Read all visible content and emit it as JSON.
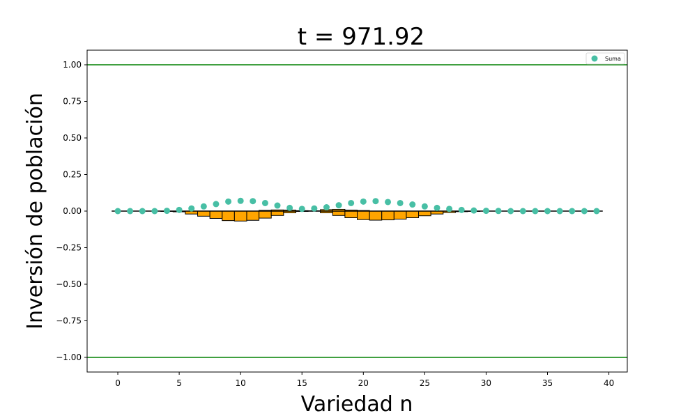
{
  "chart_data": {
    "type": "scatter",
    "title": "t = 971.92",
    "xlabel": "Variedad n",
    "ylabel": "Inversión de población",
    "xlim": [
      -2.5,
      41.5
    ],
    "ylim": [
      -1.1,
      1.1
    ],
    "xticks": [
      0,
      5,
      10,
      15,
      20,
      25,
      30,
      35,
      40
    ],
    "yticks": [
      -1.0,
      -0.75,
      -0.5,
      -0.25,
      0.0,
      0.25,
      0.5,
      0.75,
      1.0
    ],
    "xtick_labels": [
      "0",
      "5",
      "10",
      "15",
      "20",
      "25",
      "30",
      "35",
      "40"
    ],
    "ytick_labels": [
      "−1.00",
      "−0.75",
      "−0.50",
      "−0.25",
      "0.00",
      "0.25",
      "0.50",
      "0.75",
      "1.00"
    ],
    "grid": false,
    "legend_position": "top-right",
    "reference_lines": {
      "horizontal_green": [
        1.0,
        -1.0
      ],
      "baseline": 0.0,
      "baseline_x_range": [
        -0.5,
        39.5
      ],
      "green_color": "#008000",
      "baseline_color": "#000000"
    },
    "series": [
      {
        "name": "Suma",
        "kind": "scatter",
        "color": "#48bfa5",
        "x": [
          0,
          1,
          2,
          3,
          4,
          5,
          6,
          7,
          8,
          9,
          10,
          11,
          12,
          13,
          14,
          15,
          16,
          17,
          18,
          19,
          20,
          21,
          22,
          23,
          24,
          25,
          26,
          27,
          28,
          29,
          30,
          31,
          32,
          33,
          34,
          35,
          36,
          37,
          38,
          39
        ],
        "values": [
          0.0,
          0.0,
          0.0,
          0.0,
          0.002,
          0.008,
          0.018,
          0.032,
          0.048,
          0.065,
          0.07,
          0.068,
          0.055,
          0.038,
          0.022,
          0.015,
          0.018,
          0.026,
          0.04,
          0.055,
          0.065,
          0.068,
          0.062,
          0.055,
          0.045,
          0.032,
          0.022,
          0.015,
          0.008,
          0.004,
          0.002,
          0.001,
          0.0,
          0.0,
          0.0,
          0.0,
          0.0,
          0.0,
          0.0,
          0.0
        ]
      },
      {
        "kind": "bar",
        "color": "#ffa500",
        "edge_color": "#000000",
        "x": [
          0,
          1,
          2,
          3,
          4,
          5,
          6,
          7,
          8,
          9,
          10,
          11,
          12,
          13,
          14,
          15,
          16,
          17,
          18,
          19,
          20,
          21,
          22,
          23,
          24,
          25,
          26,
          27,
          28,
          29,
          30,
          31,
          32,
          33,
          34,
          35,
          36,
          37,
          38,
          39
        ],
        "values": [
          0.0,
          0.0,
          0.0,
          0.0,
          -0.001,
          -0.005,
          -0.02,
          -0.035,
          -0.05,
          -0.065,
          -0.068,
          -0.063,
          -0.048,
          -0.03,
          -0.012,
          -0.002,
          0.0,
          -0.012,
          -0.03,
          -0.045,
          -0.058,
          -0.062,
          -0.06,
          -0.055,
          -0.045,
          -0.032,
          -0.02,
          -0.01,
          -0.004,
          -0.001,
          0.0,
          0.0,
          0.0,
          0.0,
          0.0,
          0.0,
          0.0,
          0.0,
          0.0,
          0.0
        ]
      },
      {
        "kind": "bar",
        "color": "#ffa500",
        "edge_color": "#000000",
        "x": [
          12,
          13,
          14,
          15,
          16,
          17,
          18,
          19,
          20
        ],
        "values": [
          0.005,
          0.008,
          0.007,
          0.003,
          0.002,
          0.01,
          0.012,
          0.007,
          0.004
        ]
      }
    ]
  }
}
